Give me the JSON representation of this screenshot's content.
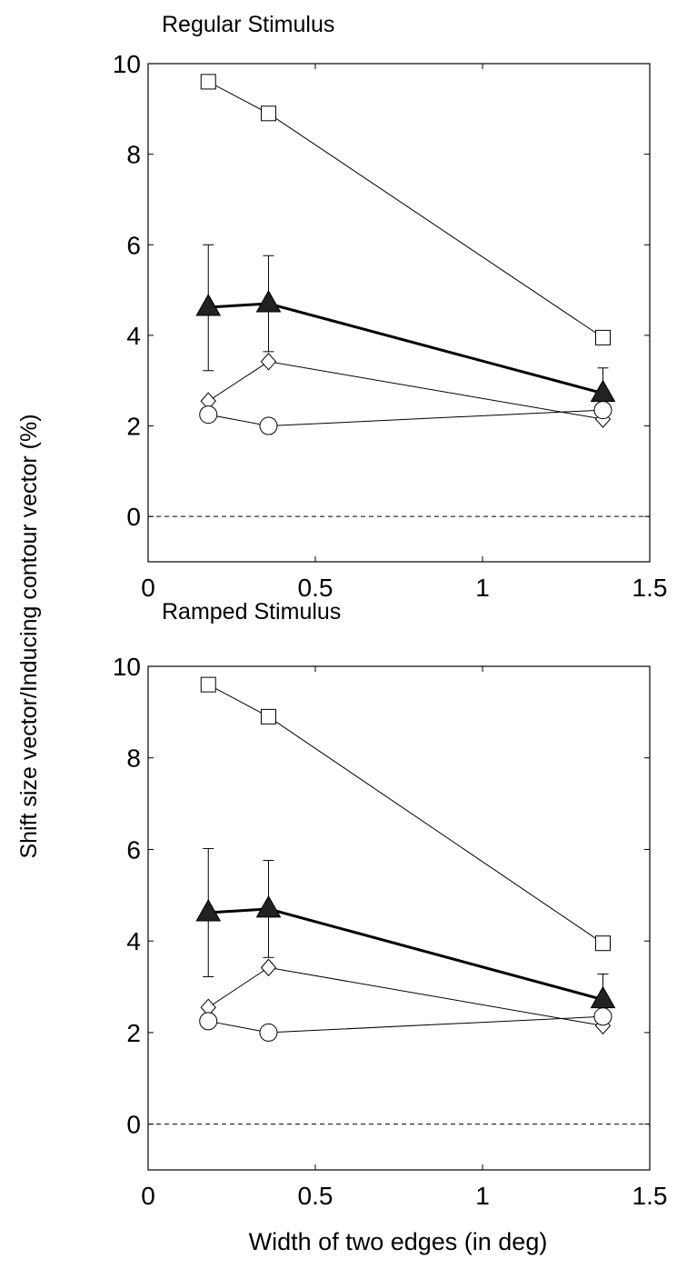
{
  "figure": {
    "ylabel": "Shift size vector/Inducing contour vector (%)",
    "xlabel": "Width of two edges (in deg)"
  },
  "chart_data": [
    {
      "type": "line",
      "title": "Regular Stimulus",
      "xlim": [
        0,
        1.5
      ],
      "ylim": [
        -1,
        10
      ],
      "xticks": [
        0,
        0.5,
        1,
        1.5
      ],
      "xtick_labels": [
        "0",
        "0.5",
        "1",
        "1.5"
      ],
      "yticks": [
        0,
        2,
        4,
        6,
        8,
        10
      ],
      "ytick_labels": [
        "0",
        "2",
        "4",
        "6",
        "8",
        "10"
      ],
      "grid": false,
      "reference_line": {
        "y": 0,
        "style": "dashed"
      },
      "x": [
        0.18,
        0.36,
        1.36
      ],
      "series": [
        {
          "marker": "square",
          "values": [
            9.6,
            8.9,
            3.95
          ],
          "line": "thin"
        },
        {
          "marker": "filled-triangle",
          "values": [
            4.62,
            4.7,
            2.72
          ],
          "line": "thick",
          "error_upper": [
            6.0,
            5.76,
            3.28
          ],
          "error_lower": [
            3.22,
            3.64,
            2.72
          ]
        },
        {
          "marker": "diamond",
          "values": [
            2.55,
            3.42,
            2.15
          ],
          "line": "thin"
        },
        {
          "marker": "circle",
          "values": [
            2.25,
            2.0,
            2.35
          ],
          "line": "thin"
        }
      ]
    },
    {
      "type": "line",
      "title": "Ramped Stimulus",
      "xlim": [
        0,
        1.5
      ],
      "ylim": [
        -1,
        10
      ],
      "xticks": [
        0,
        0.5,
        1,
        1.5
      ],
      "xtick_labels": [
        "0",
        "0.5",
        "1",
        "1.5"
      ],
      "yticks": [
        0,
        2,
        4,
        6,
        8,
        10
      ],
      "ytick_labels": [
        "0",
        "2",
        "4",
        "6",
        "8",
        "10"
      ],
      "grid": false,
      "reference_line": {
        "y": 0,
        "style": "dashed"
      },
      "x": [
        0.18,
        0.36,
        1.36
      ],
      "series": [
        {
          "marker": "square",
          "values": [
            9.6,
            8.9,
            3.95
          ],
          "line": "thin"
        },
        {
          "marker": "filled-triangle",
          "values": [
            4.62,
            4.7,
            2.72
          ],
          "line": "thick",
          "error_upper": [
            6.02,
            5.76,
            3.28
          ],
          "error_lower": [
            3.22,
            3.64,
            2.72
          ]
        },
        {
          "marker": "diamond",
          "values": [
            2.55,
            3.42,
            2.15
          ],
          "line": "thin"
        },
        {
          "marker": "circle",
          "values": [
            2.25,
            2.0,
            2.35
          ],
          "line": "thin"
        }
      ]
    }
  ]
}
